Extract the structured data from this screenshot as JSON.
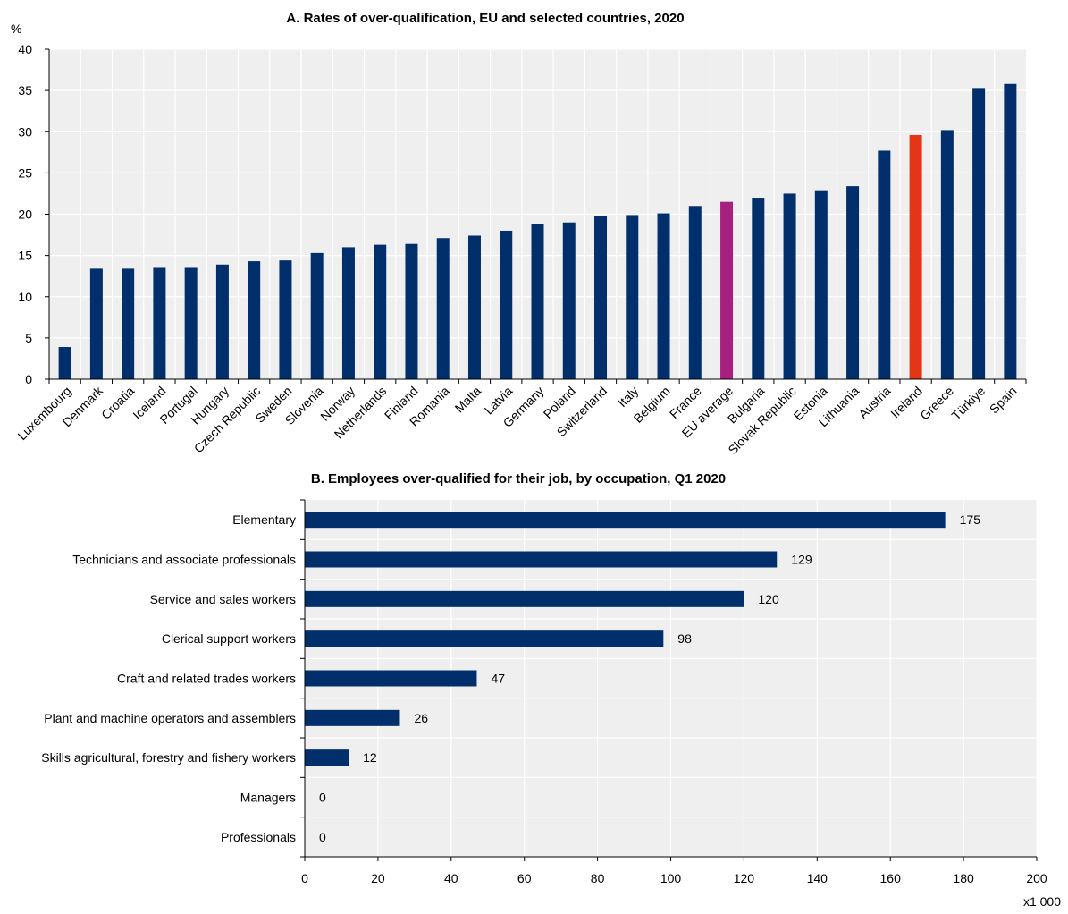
{
  "chart_data": [
    {
      "type": "bar",
      "title": "A. Rates of over-qualification, EU and selected countries, 2020",
      "ylabel": "%",
      "ylim": [
        0,
        40
      ],
      "yticks": [
        0,
        5,
        10,
        15,
        20,
        25,
        30,
        35,
        40
      ],
      "grid": true,
      "categories": [
        "Luxembourg",
        "Denmark",
        "Croatia",
        "Iceland",
        "Portugal",
        "Hungary",
        "Czech Republic",
        "Sweden",
        "Slovenia",
        "Norway",
        "Netherlands",
        "Finland",
        "Romania",
        "Malta",
        "Latvia",
        "Germany",
        "Poland",
        "Switzerland",
        "Italy",
        "Belgium",
        "France",
        "EU average",
        "Bulgaria",
        "Slovak Republic",
        "Estonia",
        "Lithuania",
        "Austria",
        "Ireland",
        "Greece",
        "Türkiye",
        "Spain"
      ],
      "values": [
        3.9,
        13.4,
        13.4,
        13.5,
        13.5,
        13.9,
        14.3,
        14.4,
        15.3,
        16.0,
        16.3,
        16.4,
        17.1,
        17.4,
        18.0,
        18.8,
        19.0,
        19.8,
        19.9,
        20.1,
        21.0,
        21.5,
        22.0,
        22.5,
        22.8,
        23.4,
        27.7,
        29.6,
        30.2,
        35.3,
        35.8
      ],
      "colors": {
        "default": "#002f6c",
        "highlight_eu": "#a6217f",
        "highlight_ireland": "#e53517"
      },
      "highlights": {
        "EU average": "highlight_eu",
        "Ireland": "highlight_ireland"
      }
    },
    {
      "type": "bar",
      "orientation": "horizontal",
      "title": "B. Employees over-qualified for their job, by occupation, Q1 2020",
      "xlabel": "x1 000",
      "xlim": [
        0,
        200
      ],
      "xticks": [
        0,
        20,
        40,
        60,
        80,
        100,
        120,
        140,
        160,
        180,
        200
      ],
      "grid": true,
      "categories": [
        "Elementary",
        "Technicians and associate professionals",
        "Service and sales workers",
        "Clerical support workers",
        "Craft and related trades workers",
        "Plant and machine operators and assemblers",
        "Skills agricultural, forestry and fishery workers",
        "Managers",
        "Professionals"
      ],
      "values": [
        175,
        129,
        120,
        98,
        47,
        26,
        12,
        0,
        0
      ],
      "data_labels": [
        "175",
        "129",
        "120",
        "98",
        "47",
        "26",
        "12",
        "0",
        "0"
      ],
      "colors": {
        "default": "#002f6c"
      }
    }
  ]
}
